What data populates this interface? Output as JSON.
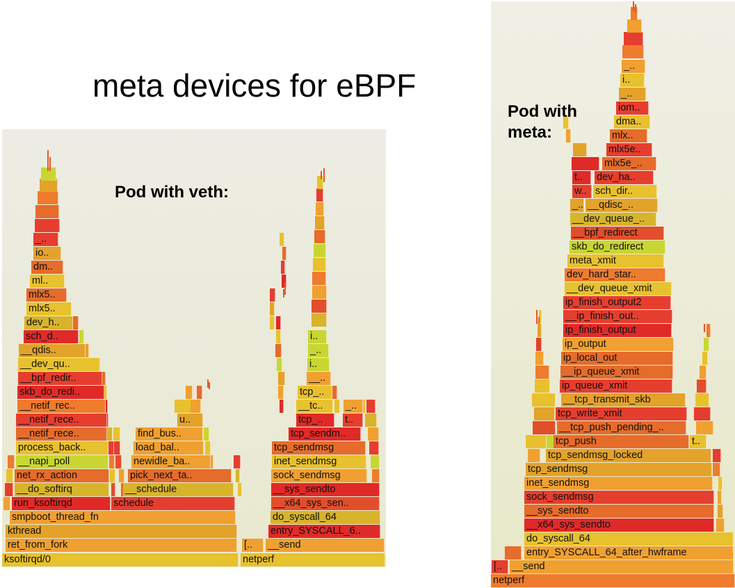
{
  "title": "meta devices for eBPF",
  "left_panel": {
    "label": "Pod with veth:",
    "colors": [
      "#e8c12e",
      "#e3a22a",
      "#f0a030",
      "#e56c2b",
      "#e53e2f",
      "#e24e2c",
      "#c9d632",
      "#d7b42a",
      "#ef7b2d",
      "#e02a28"
    ],
    "frames": [
      {
        "t": "ksoftirqd/0"
      },
      {
        "t": "netperf"
      },
      {
        "t": "ret_from_fork"
      },
      {
        "t": "[.."
      },
      {
        "t": "__send"
      },
      {
        "t": "kthread"
      },
      {
        "t": "entry_SYSCALL_6.."
      },
      {
        "t": "smpboot_thread_fn"
      },
      {
        "t": "do_syscall_64"
      },
      {
        "t": "run_ksoftirqd"
      },
      {
        "t": "schedule"
      },
      {
        "t": "__x64_sys_sen.."
      },
      {
        "t": "__do_softirq"
      },
      {
        "t": "__schedule"
      },
      {
        "t": "__sys_sendto"
      },
      {
        "t": "net_rx_action"
      },
      {
        "t": "pick_next_ta.."
      },
      {
        "t": "sock_sendmsg"
      },
      {
        "t": "__napi_poll"
      },
      {
        "t": "newidle_ba.."
      },
      {
        "t": "inet_sendmsg"
      },
      {
        "t": "process_back.."
      },
      {
        "t": "load_bal.."
      },
      {
        "t": "tcp_sendmsg"
      },
      {
        "t": "__netif_rece.."
      },
      {
        "t": "find_bus.."
      },
      {
        "t": "tcp_sendm.."
      },
      {
        "t": "__netif_rece.."
      },
      {
        "t": "u.."
      },
      {
        "t": "tcp_.."
      },
      {
        "t": "t.."
      },
      {
        "t": "__netif_rec.."
      },
      {
        "t": "__tc.."
      },
      {
        "t": "_.."
      },
      {
        "t": "skb_do_redi.."
      },
      {
        "t": "tcp_.."
      },
      {
        "t": "__bpf_redir.."
      },
      {
        "t": "__.."
      },
      {
        "t": "__dev_qu.."
      },
      {
        "t": "i.."
      },
      {
        "t": "__qdis.."
      },
      {
        "t": "_.."
      },
      {
        "t": "sch_d.."
      },
      {
        "t": "i.."
      },
      {
        "t": "dev_h.."
      },
      {
        "t": "mlx5.."
      },
      {
        "t": "mlx5.."
      },
      {
        "t": "ml.."
      },
      {
        "t": "dm.."
      },
      {
        "t": "io.."
      },
      {
        "t": "_.."
      }
    ]
  },
  "right_panel": {
    "label": "Pod with\nmeta:",
    "colors": [
      "#e8c12e",
      "#e3a22a",
      "#f0a030",
      "#e56c2b",
      "#e53e2f",
      "#e24e2c",
      "#c9d632",
      "#d7b42a",
      "#ef7b2d",
      "#e02a28"
    ],
    "frames": [
      {
        "t": "netperf"
      },
      {
        "t": "[.."
      },
      {
        "t": "__send"
      },
      {
        "t": "entry_SYSCALL_64_after_hwframe"
      },
      {
        "t": "do_syscall_64"
      },
      {
        "t": "__x64_sys_sendto"
      },
      {
        "t": "__sys_sendto"
      },
      {
        "t": "sock_sendmsg"
      },
      {
        "t": "inet_sendmsg"
      },
      {
        "t": "tcp_sendmsg"
      },
      {
        "t": "tcp_sendmsg_locked"
      },
      {
        "t": "tcp_push"
      },
      {
        "t": "t.."
      },
      {
        "t": "__tcp_push_pending_.."
      },
      {
        "t": "tcp_write_xmit"
      },
      {
        "t": "__tcp_transmit_skb"
      },
      {
        "t": "ip_queue_xmit"
      },
      {
        "t": "__ip_queue_xmit"
      },
      {
        "t": "ip_local_out"
      },
      {
        "t": "ip_output"
      },
      {
        "t": "ip_finish_output"
      },
      {
        "t": "__ip_finish_out.."
      },
      {
        "t": "ip_finish_output2"
      },
      {
        "t": "__dev_queue_xmit"
      },
      {
        "t": "dev_hard_star.."
      },
      {
        "t": "meta_xmit"
      },
      {
        "t": "skb_do_redirect"
      },
      {
        "t": "__bpf_redirect"
      },
      {
        "t": "__dev_queue_.."
      },
      {
        "t": "_.."
      },
      {
        "t": "__qdisc_.."
      },
      {
        "t": "w.."
      },
      {
        "t": "sch_dir.."
      },
      {
        "t": "t.."
      },
      {
        "t": "dev_ha.."
      },
      {
        "t": "mlx5e_.."
      },
      {
        "t": "mlx5e.."
      },
      {
        "t": "mlx.."
      },
      {
        "t": "dma.."
      },
      {
        "t": "iom.."
      },
      {
        "t": "_.."
      },
      {
        "t": "i.."
      },
      {
        "t": "_.."
      }
    ]
  }
}
